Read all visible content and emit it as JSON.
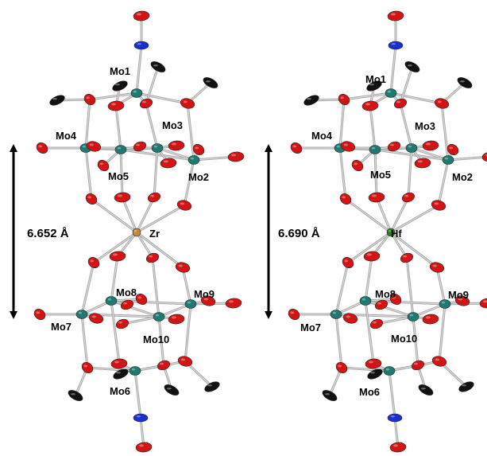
{
  "structures": [
    {
      "id": "zr",
      "central_atom": "Zr",
      "distance_label": "6.652 Å",
      "mo_labels": [
        "Mo1",
        "Mo2",
        "Mo3",
        "Mo4",
        "Mo5",
        "Mo6",
        "Mo7",
        "Mo8",
        "Mo9",
        "Mo10"
      ]
    },
    {
      "id": "hf",
      "central_atom": "Hf",
      "distance_label": "6.690 Å",
      "mo_labels": [
        "Mo1",
        "Mo2",
        "Mo3",
        "Mo4",
        "Mo5",
        "Mo6",
        "Mo7",
        "Mo8",
        "Mo9",
        "Mo10"
      ]
    }
  ],
  "colors": {
    "molybdenum": "#1f7a72",
    "oxygen": "#d41414",
    "carbon": "#111111",
    "nitrogen": "#1a2fd0",
    "zirconium": "#c08a3a",
    "hafnium": "#2e7d1e",
    "bond": "#a8a8a8",
    "arrow": "#000000"
  }
}
